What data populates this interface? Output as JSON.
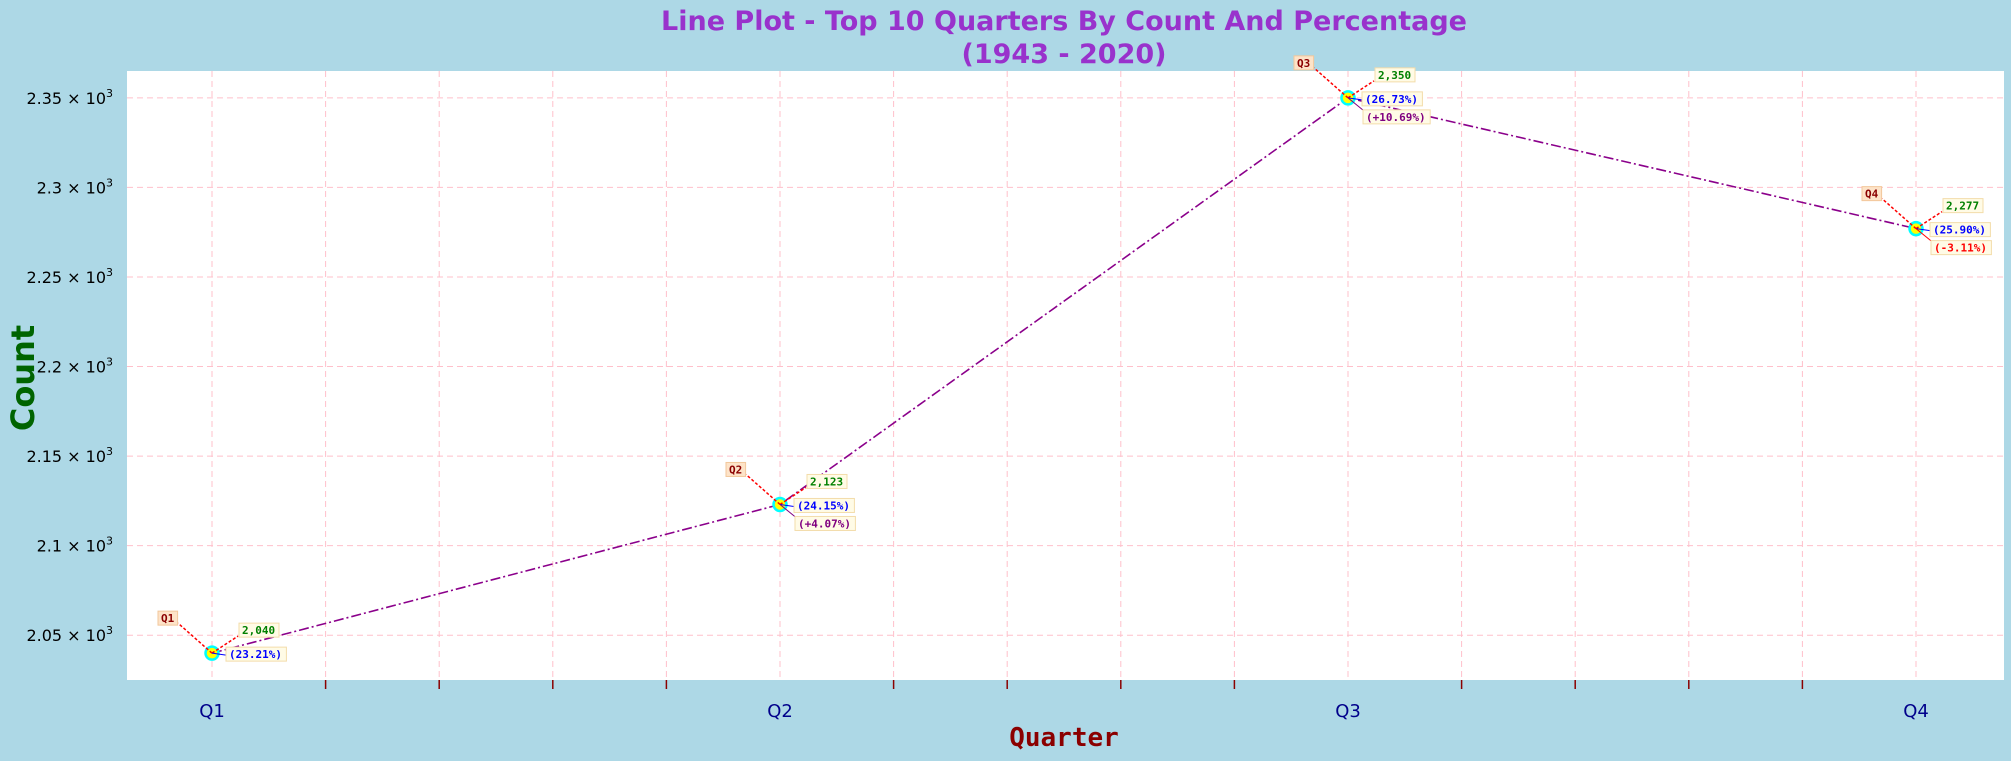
{
  "chart_data": {
    "type": "line",
    "title": "Line Plot - Top 10 Quarters By Count And Percentage",
    "subtitle": "(1943 - 2020)",
    "xlabel": "Quarter",
    "ylabel": "Count",
    "categories": [
      "Q1",
      "Q2",
      "Q3",
      "Q4"
    ],
    "values": [
      2040,
      2123,
      2350,
      2277
    ],
    "value_labels": [
      "2,040",
      "2,123",
      "2,350",
      "2,277"
    ],
    "percent_labels": [
      "(23.21%)",
      "(24.15%)",
      "(26.73%)",
      "(25.90%)"
    ],
    "change_labels": [
      "",
      "(+4.07%)",
      "(+10.69%)",
      "(-3.11%)"
    ],
    "ylim": [
      2025,
      2365
    ],
    "yticks": [
      {
        "value": 2050,
        "mantissa": "2.05"
      },
      {
        "value": 2100,
        "mantissa": "2.1"
      },
      {
        "value": 2150,
        "mantissa": "2.15"
      },
      {
        "value": 2200,
        "mantissa": "2.2"
      },
      {
        "value": 2250,
        "mantissa": "2.25"
      },
      {
        "value": 2300,
        "mantissa": "2.3"
      },
      {
        "value": 2350,
        "mantissa": "2.35"
      }
    ],
    "ytick_suffix": "× 10",
    "ytick_exponent": "3",
    "grid": true,
    "colors": {
      "background": "#add8e6",
      "plot_area": "#ffffff",
      "line": "#8b008b",
      "grid": "#ffc0cb",
      "title": "#9932cc",
      "xlabel": "#8b0000",
      "ylabel": "#006400",
      "xtick": "#00008b",
      "value_label": "#008000",
      "percent_label": "#0000ff",
      "change_positive": "#800080",
      "change_negative": "#ff0000",
      "category_label": "#8b0000",
      "marker_fill": "#ffff00",
      "marker_edge": "#00ffff",
      "connector": "#ff0000"
    }
  }
}
